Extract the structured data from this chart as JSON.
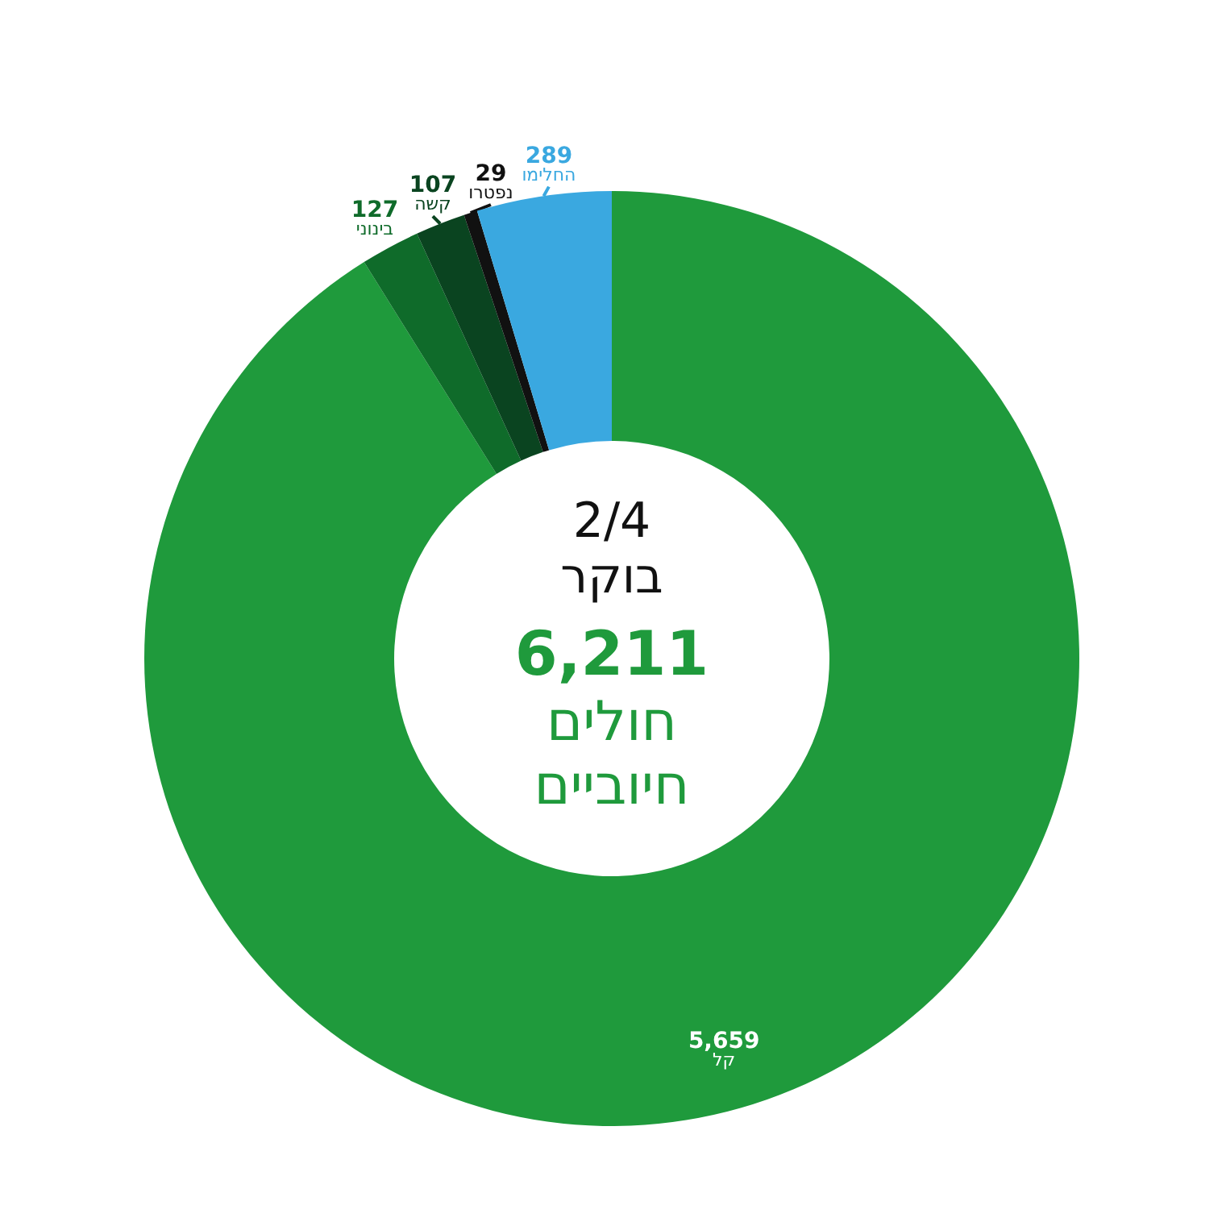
{
  "chart_data": {
    "type": "donut",
    "categories": [
      "קל",
      "בינוני",
      "קשה",
      "נפטרו",
      "החלימו"
    ],
    "values": [
      5659,
      127,
      107,
      29,
      289
    ],
    "colors": [
      "#1f9a3c",
      "#0f6b2a",
      "#0a4420",
      "#111111",
      "#3aa8e0"
    ],
    "value_labels": [
      "5,659",
      "127",
      "107",
      "29",
      "289"
    ],
    "annotations": [
      "2/4",
      "בוקר",
      "6,211",
      "חולים חיוביים"
    ]
  }
}
